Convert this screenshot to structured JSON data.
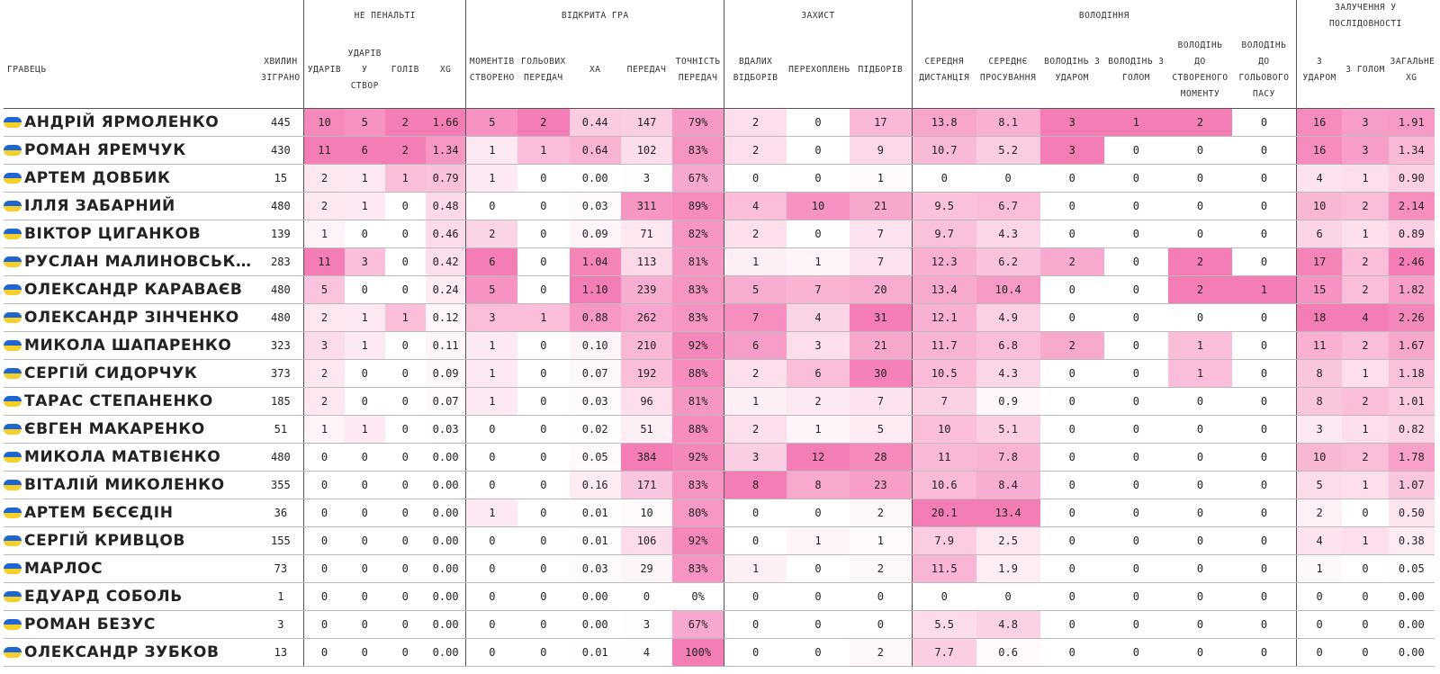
{
  "table": {
    "player_header": "ГРАВЕЦЬ",
    "minutes_header": "ХВИЛИН ЗІГРАНО",
    "groups": [
      {
        "title": "НЕ ПЕНАЛЬТІ",
        "columns": [
          "УДАРІВ",
          "УДАРІВ У СТВОР",
          "ГОЛІВ",
          "XG"
        ]
      },
      {
        "title": "ВІДКРИТА ГРА",
        "columns": [
          "МОМЕНТІВ СТВОРЕНО",
          "ГОЛЬОВИХ ПЕРЕДАЧ",
          "XA",
          "ПЕРЕДАЧ",
          "ТОЧНІСТЬ ПЕРЕДАЧ"
        ]
      },
      {
        "title": "ЗАХИСТ",
        "columns": [
          "ВДАЛИХ ВІДБОРІВ",
          "ПЕРЕХОПЛЕНЬ",
          "ПІДБОРІВ"
        ]
      },
      {
        "title": "ВОЛОДІННЯ",
        "columns": [
          "СЕРЕДНЯ ДИСТАНЦІЯ",
          "СЕРЕДНЄ ПРОСУВАННЯ",
          "ВОЛОДІНЬ З УДАРОМ",
          "ВОЛОДІНЬ З ГОЛОМ",
          "ВОЛОДІНЬ ДО СТВОРЕНОГО МОМЕНТУ",
          "ВОЛОДІНЬ ДО ГОЛЬОВОГО ПАСУ"
        ]
      },
      {
        "title": "ЗАЛУЧЕННЯ У ПОСЛІДОВНОСТІ",
        "columns": [
          "З УДАРОМ",
          "З ГОЛОМ",
          "ЗАГАЛЬНЕ XG"
        ]
      }
    ],
    "rows": [
      [
        "АНДРІЙ ЯРМОЛЕНКО",
        "445",
        "10",
        "5",
        "2",
        "1.66",
        "5",
        "2",
        "0.44",
        "147",
        "79%",
        "2",
        "0",
        "17",
        "13.8",
        "8.1",
        "3",
        "1",
        "2",
        "0",
        "16",
        "3",
        "1.91"
      ],
      [
        "РОМАН ЯРЕМЧУК",
        "430",
        "11",
        "6",
        "2",
        "1.34",
        "1",
        "1",
        "0.64",
        "102",
        "83%",
        "2",
        "0",
        "9",
        "10.7",
        "5.2",
        "3",
        "0",
        "0",
        "0",
        "16",
        "3",
        "1.34"
      ],
      [
        "АРТЕМ ДОВБИК",
        "15",
        "2",
        "1",
        "1",
        "0.79",
        "1",
        "0",
        "0.00",
        "3",
        "67%",
        "0",
        "0",
        "1",
        "0",
        "0",
        "0",
        "0",
        "0",
        "0",
        "4",
        "1",
        "0.90"
      ],
      [
        "ІЛЛЯ ЗАБАРНИЙ",
        "480",
        "2",
        "1",
        "0",
        "0.48",
        "0",
        "0",
        "0.03",
        "311",
        "89%",
        "4",
        "10",
        "21",
        "9.5",
        "6.7",
        "0",
        "0",
        "0",
        "0",
        "10",
        "2",
        "2.14"
      ],
      [
        "ВІКТОР ЦИГАНКОВ",
        "139",
        "1",
        "0",
        "0",
        "0.46",
        "2",
        "0",
        "0.09",
        "71",
        "82%",
        "2",
        "0",
        "7",
        "9.7",
        "4.3",
        "0",
        "0",
        "0",
        "0",
        "6",
        "1",
        "0.89"
      ],
      [
        "РУСЛАН МАЛИНОВСЬК…",
        "283",
        "11",
        "3",
        "0",
        "0.42",
        "6",
        "0",
        "1.04",
        "113",
        "81%",
        "1",
        "1",
        "7",
        "12.3",
        "6.2",
        "2",
        "0",
        "2",
        "0",
        "17",
        "2",
        "2.46"
      ],
      [
        "ОЛЕКСАНДР КАРАВАЄВ",
        "480",
        "5",
        "0",
        "0",
        "0.24",
        "5",
        "0",
        "1.10",
        "239",
        "83%",
        "5",
        "7",
        "20",
        "13.4",
        "10.4",
        "0",
        "0",
        "2",
        "1",
        "15",
        "2",
        "1.82"
      ],
      [
        "ОЛЕКСАНДР ЗІНЧЕНКО",
        "480",
        "2",
        "1",
        "1",
        "0.12",
        "3",
        "1",
        "0.88",
        "262",
        "83%",
        "7",
        "4",
        "31",
        "12.1",
        "4.9",
        "0",
        "0",
        "0",
        "0",
        "18",
        "4",
        "2.26"
      ],
      [
        "МИКОЛА ШАПАРЕНКО",
        "323",
        "3",
        "1",
        "0",
        "0.11",
        "1",
        "0",
        "0.10",
        "210",
        "92%",
        "6",
        "3",
        "21",
        "11.7",
        "6.8",
        "2",
        "0",
        "1",
        "0",
        "11",
        "2",
        "1.67"
      ],
      [
        "СЕРГІЙ СИДОРЧУК",
        "373",
        "2",
        "0",
        "0",
        "0.09",
        "1",
        "0",
        "0.07",
        "192",
        "88%",
        "2",
        "6",
        "30",
        "10.5",
        "4.3",
        "0",
        "0",
        "1",
        "0",
        "8",
        "1",
        "1.18"
      ],
      [
        "ТАРАС СТЕПАНЕНКО",
        "185",
        "2",
        "0",
        "0",
        "0.07",
        "1",
        "0",
        "0.03",
        "96",
        "81%",
        "1",
        "2",
        "7",
        "7",
        "0.9",
        "0",
        "0",
        "0",
        "0",
        "8",
        "2",
        "1.01"
      ],
      [
        "ЄВГЕН МАКАРЕНКО",
        "51",
        "1",
        "1",
        "0",
        "0.03",
        "0",
        "0",
        "0.02",
        "51",
        "88%",
        "2",
        "1",
        "5",
        "10",
        "5.1",
        "0",
        "0",
        "0",
        "0",
        "3",
        "1",
        "0.82"
      ],
      [
        "МИКОЛА МАТВІЄНКО",
        "480",
        "0",
        "0",
        "0",
        "0.00",
        "0",
        "0",
        "0.05",
        "384",
        "92%",
        "3",
        "12",
        "28",
        "11",
        "7.8",
        "0",
        "0",
        "0",
        "0",
        "10",
        "2",
        "1.78"
      ],
      [
        "ВІТАЛІЙ МИКОЛЕНКО",
        "355",
        "0",
        "0",
        "0",
        "0.00",
        "0",
        "0",
        "0.16",
        "171",
        "83%",
        "8",
        "8",
        "23",
        "10.6",
        "8.4",
        "0",
        "0",
        "0",
        "0",
        "5",
        "1",
        "1.07"
      ],
      [
        "АРТЕМ БЄСЄДІН",
        "36",
        "0",
        "0",
        "0",
        "0.00",
        "1",
        "0",
        "0.01",
        "10",
        "80%",
        "0",
        "0",
        "2",
        "20.1",
        "13.4",
        "0",
        "0",
        "0",
        "0",
        "2",
        "0",
        "0.50"
      ],
      [
        "СЕРГІЙ КРИВЦОВ",
        "155",
        "0",
        "0",
        "0",
        "0.00",
        "0",
        "0",
        "0.01",
        "106",
        "92%",
        "0",
        "1",
        "1",
        "7.9",
        "2.5",
        "0",
        "0",
        "0",
        "0",
        "4",
        "1",
        "0.38"
      ],
      [
        "МАРЛОС",
        "73",
        "0",
        "0",
        "0",
        "0.00",
        "0",
        "0",
        "0.03",
        "29",
        "83%",
        "1",
        "0",
        "2",
        "11.5",
        "1.9",
        "0",
        "0",
        "0",
        "0",
        "1",
        "0",
        "0.05"
      ],
      [
        "ЕДУАРД СОБОЛЬ",
        "1",
        "0",
        "0",
        "0",
        "0.00",
        "0",
        "0",
        "0.00",
        "0",
        "0%",
        "0",
        "0",
        "0",
        "0",
        "0",
        "0",
        "0",
        "0",
        "0",
        "0",
        "0",
        "0.00"
      ],
      [
        "РОМАН БЕЗУС",
        "3",
        "0",
        "0",
        "0",
        "0.00",
        "0",
        "0",
        "0.00",
        "3",
        "67%",
        "0",
        "0",
        "0",
        "5.5",
        "4.8",
        "0",
        "0",
        "0",
        "0",
        "0",
        "0",
        "0.00"
      ],
      [
        "ОЛЕКСАНДР ЗУБКОВ",
        "13",
        "0",
        "0",
        "0",
        "0.00",
        "0",
        "0",
        "0.01",
        "4",
        "100%",
        "0",
        "0",
        "2",
        "7.7",
        "0.6",
        "0",
        "0",
        "0",
        "0",
        "0",
        "0",
        "0.00"
      ]
    ]
  }
}
